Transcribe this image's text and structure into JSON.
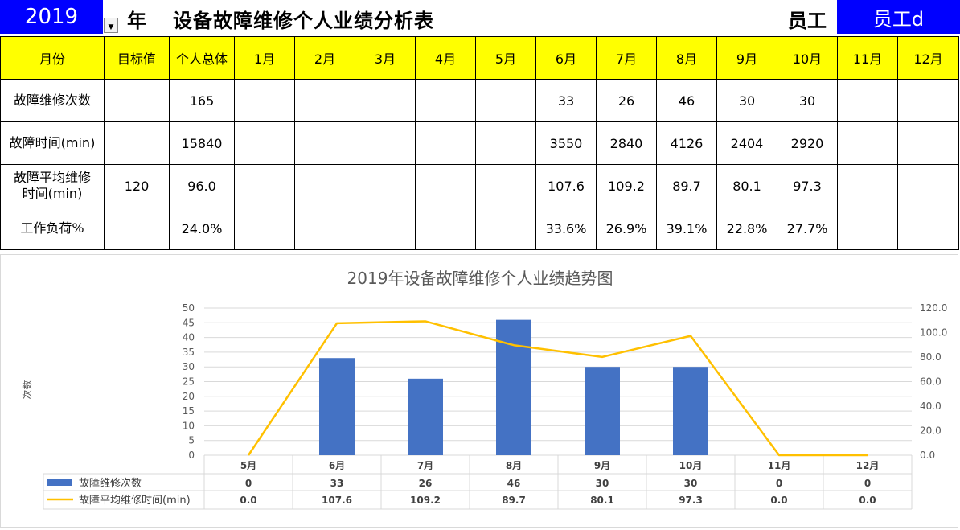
{
  "header": {
    "year": "2019",
    "year_unit": "年",
    "title": "设备故障维修个人业绩分析表",
    "employee_label": "员工",
    "employee": "员工d"
  },
  "table": {
    "columns": [
      "月份",
      "目标值",
      "个人总体",
      "1月",
      "2月",
      "3月",
      "4月",
      "5月",
      "6月",
      "7月",
      "8月",
      "9月",
      "10月",
      "11月",
      "12月"
    ],
    "rows": [
      {
        "label": "故障维修次数",
        "cells": [
          "",
          "165",
          "",
          "",
          "",
          "",
          "",
          "33",
          "26",
          "46",
          "30",
          "30",
          "",
          ""
        ]
      },
      {
        "label": "故障时间(min)",
        "cells": [
          "",
          "15840",
          "",
          "",
          "",
          "",
          "",
          "3550",
          "2840",
          "4126",
          "2404",
          "2920",
          "",
          ""
        ]
      },
      {
        "label": "故障平均维修时间(min)",
        "label_lines": [
          "故障平均维修",
          "时间(min)"
        ],
        "cells": [
          "120",
          "96.0",
          "",
          "",
          "",
          "",
          "",
          "107.6",
          "109.2",
          "89.7",
          "80.1",
          "97.3",
          "",
          ""
        ]
      },
      {
        "label": "工作负荷%",
        "cells": [
          "",
          "24.0%",
          "",
          "",
          "",
          "",
          "",
          "33.6%",
          "26.9%",
          "39.1%",
          "22.8%",
          "27.7%",
          "",
          ""
        ]
      }
    ]
  },
  "chart_data": {
    "type": "bar",
    "title": "2019年设备故障维修个人业绩趋势图",
    "ylabel": "次数",
    "y2label": "",
    "categories": [
      "5月",
      "6月",
      "7月",
      "8月",
      "9月",
      "10月",
      "11月",
      "12月"
    ],
    "series": [
      {
        "name": "故障维修次数",
        "type": "bar",
        "axis": "left",
        "color": "#4472c4",
        "values": [
          0,
          33,
          26,
          46,
          30,
          30,
          0,
          0
        ],
        "labels": [
          "0",
          "33",
          "26",
          "46",
          "30",
          "30",
          "0",
          "0"
        ]
      },
      {
        "name": "故障平均维修时间(min)",
        "type": "line",
        "axis": "right",
        "color": "#ffc000",
        "values": [
          0.0,
          107.6,
          109.2,
          89.7,
          80.1,
          97.3,
          0.0,
          0.0
        ],
        "labels": [
          "0.0",
          "107.6",
          "109.2",
          "89.7",
          "80.1",
          "97.3",
          "0.0",
          "0.0"
        ]
      }
    ],
    "ylim": [
      0,
      50
    ],
    "y_ticks": [
      "0",
      "5",
      "10",
      "15",
      "20",
      "25",
      "30",
      "35",
      "40",
      "45",
      "50"
    ],
    "y2lim": [
      0,
      120
    ],
    "y2_ticks": [
      "0.0",
      "20.0",
      "40.0",
      "60.0",
      "80.0",
      "100.0",
      "120.0"
    ],
    "grid": true,
    "legend": "data-table-bottom"
  }
}
